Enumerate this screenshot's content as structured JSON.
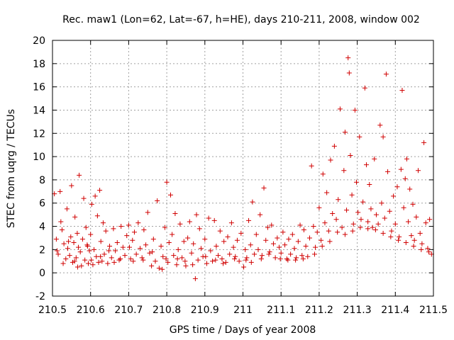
{
  "chart_data": {
    "type": "scatter",
    "title": "Rec. maw1 (Lon=62, Lat=-67, h=HE), days 210-211, 2008, window 002",
    "xlabel": "GPS time / Days of year 2008",
    "ylabel": "STEC from uqrg / TECUs",
    "xlim": [
      210.5,
      211.5
    ],
    "ylim": [
      -2,
      20
    ],
    "x_ticks": [
      "210.5",
      "210.6",
      "210.7",
      "210.8",
      "210.9",
      "211",
      "211.1",
      "211.2",
      "211.3",
      "211.4",
      "211.5"
    ],
    "y_ticks": [
      "-2",
      "0",
      "2",
      "4",
      "6",
      "8",
      "10",
      "12",
      "14",
      "16",
      "18",
      "20"
    ],
    "grid": true,
    "legend": "none",
    "marker": "plus",
    "color": "#d00000",
    "series": [
      {
        "points": [
          [
            210.505,
            6.8
          ],
          [
            210.51,
            2.9
          ],
          [
            210.515,
            1.6
          ],
          [
            210.52,
            7.0
          ],
          [
            210.522,
            4.4
          ],
          [
            210.525,
            3.7
          ],
          [
            210.53,
            2.5
          ],
          [
            210.535,
            1.2
          ],
          [
            210.538,
            5.5
          ],
          [
            210.54,
            2.1
          ],
          [
            210.545,
            1.5
          ],
          [
            210.548,
            3.1
          ],
          [
            210.55,
            7.5
          ],
          [
            210.553,
            0.9
          ],
          [
            210.556,
            2.6
          ],
          [
            210.559,
            4.8
          ],
          [
            210.562,
            1.3
          ],
          [
            210.565,
            3.4
          ],
          [
            210.568,
            2.2
          ],
          [
            210.57,
            8.4
          ],
          [
            210.573,
            1.8
          ],
          [
            210.576,
            0.6
          ],
          [
            210.579,
            2.9
          ],
          [
            210.582,
            6.4
          ],
          [
            210.585,
            1.1
          ],
          [
            210.588,
            3.9
          ],
          [
            210.591,
            2.4
          ],
          [
            210.594,
            0.8
          ],
          [
            210.597,
            1.9
          ],
          [
            210.6,
            3.3
          ],
          [
            210.603,
            5.9
          ],
          [
            210.606,
            0.7
          ],
          [
            210.609,
            2.0
          ],
          [
            210.612,
            6.6
          ],
          [
            210.615,
            1.4
          ],
          [
            210.618,
            4.9
          ],
          [
            210.621,
            0.9
          ],
          [
            210.624,
            7.1
          ],
          [
            210.627,
            2.7
          ],
          [
            210.63,
            1.0
          ],
          [
            210.633,
            4.3
          ],
          [
            210.636,
            1.6
          ],
          [
            210.64,
            3.6
          ],
          [
            210.645,
            0.8
          ],
          [
            210.65,
            2.3
          ],
          [
            210.655,
            1.3
          ],
          [
            210.66,
            3.8
          ],
          [
            210.665,
            1.9
          ],
          [
            210.67,
            2.6
          ],
          [
            210.675,
            1.1
          ],
          [
            210.68,
            4.0
          ],
          [
            210.685,
            2.2
          ],
          [
            210.69,
            1.5
          ],
          [
            210.695,
            3.2
          ],
          [
            210.7,
            4.1
          ],
          [
            210.705,
            1.2
          ],
          [
            210.71,
            2.8
          ],
          [
            210.715,
            3.5
          ],
          [
            210.72,
            1.6
          ],
          [
            210.725,
            4.3
          ],
          [
            210.73,
            2.1
          ],
          [
            210.735,
            1.3
          ],
          [
            210.74,
            3.7
          ],
          [
            210.745,
            2.4
          ],
          [
            210.75,
            5.2
          ],
          [
            210.755,
            1.7
          ],
          [
            210.76,
            0.6
          ],
          [
            210.765,
            2.9
          ],
          [
            210.77,
            1.0
          ],
          [
            210.775,
            6.2
          ],
          [
            210.78,
            0.4
          ],
          [
            210.785,
            2.3
          ],
          [
            210.79,
            1.4
          ],
          [
            210.795,
            3.9
          ],
          [
            210.8,
            7.8
          ],
          [
            210.803,
            0.9
          ],
          [
            210.806,
            2.6
          ],
          [
            210.81,
            6.7
          ],
          [
            210.814,
            3.3
          ],
          [
            210.818,
            1.5
          ],
          [
            210.822,
            5.1
          ],
          [
            210.826,
            0.7
          ],
          [
            210.83,
            2.0
          ],
          [
            210.835,
            4.2
          ],
          [
            210.84,
            1.3
          ],
          [
            210.845,
            2.7
          ],
          [
            210.85,
            0.6
          ],
          [
            210.855,
            3.0
          ],
          [
            210.86,
            4.4
          ],
          [
            210.865,
            1.7
          ],
          [
            210.87,
            2.5
          ],
          [
            210.875,
            -0.5
          ],
          [
            210.878,
            5.0
          ],
          [
            210.882,
            1.1
          ],
          [
            210.886,
            3.8
          ],
          [
            210.89,
            2.1
          ],
          [
            210.895,
            1.4
          ],
          [
            210.9,
            2.9
          ],
          [
            210.905,
            0.8
          ],
          [
            210.91,
            4.7
          ],
          [
            210.915,
            1.9
          ],
          [
            210.92,
            1.0
          ],
          [
            210.925,
            4.5
          ],
          [
            210.93,
            2.3
          ],
          [
            210.935,
            1.5
          ],
          [
            210.94,
            3.6
          ],
          [
            210.945,
            1.2
          ],
          [
            210.95,
            2.7
          ],
          [
            210.955,
            0.9
          ],
          [
            210.96,
            3.1
          ],
          [
            210.965,
            1.6
          ],
          [
            210.97,
            4.3
          ],
          [
            210.975,
            2.2
          ],
          [
            210.98,
            1.4
          ],
          [
            210.985,
            2.8
          ],
          [
            210.99,
            1.0
          ],
          [
            210.995,
            3.4
          ],
          [
            211.002,
            0.5
          ],
          [
            211.006,
            2.0
          ],
          [
            211.01,
            1.3
          ],
          [
            211.015,
            4.5
          ],
          [
            211.02,
            2.4
          ],
          [
            211.025,
            6.1
          ],
          [
            211.03,
            1.6
          ],
          [
            211.035,
            3.3
          ],
          [
            211.04,
            2.0
          ],
          [
            211.045,
            5.0
          ],
          [
            211.05,
            1.5
          ],
          [
            211.055,
            7.3
          ],
          [
            211.06,
            2.8
          ],
          [
            211.065,
            3.9
          ],
          [
            211.07,
            1.8
          ],
          [
            211.075,
            4.1
          ],
          [
            211.08,
            2.5
          ],
          [
            211.085,
            1.3
          ],
          [
            211.09,
            3.0
          ],
          [
            211.095,
            2.2
          ],
          [
            211.1,
            1.7
          ],
          [
            211.105,
            3.5
          ],
          [
            211.11,
            2.4
          ],
          [
            211.115,
            1.2
          ],
          [
            211.12,
            2.9
          ],
          [
            211.125,
            1.6
          ],
          [
            211.13,
            3.3
          ],
          [
            211.135,
            2.1
          ],
          [
            211.14,
            1.3
          ],
          [
            211.145,
            2.7
          ],
          [
            211.15,
            4.1
          ],
          [
            211.155,
            1.5
          ],
          [
            211.16,
            3.7
          ],
          [
            211.165,
            2.3
          ],
          [
            211.17,
            1.4
          ],
          [
            211.175,
            3.0
          ],
          [
            211.18,
            9.2
          ],
          [
            211.185,
            4.0
          ],
          [
            211.19,
            2.2
          ],
          [
            211.195,
            3.5
          ],
          [
            211.2,
            5.6
          ],
          [
            211.205,
            2.8
          ],
          [
            211.21,
            8.5
          ],
          [
            211.215,
            4.3
          ],
          [
            211.22,
            6.9
          ],
          [
            211.225,
            3.6
          ],
          [
            211.23,
            9.7
          ],
          [
            211.235,
            5.1
          ],
          [
            211.24,
            10.9
          ],
          [
            211.245,
            4.6
          ],
          [
            211.25,
            6.3
          ],
          [
            211.255,
            14.1
          ],
          [
            211.26,
            3.9
          ],
          [
            211.265,
            8.8
          ],
          [
            211.268,
            12.1
          ],
          [
            211.272,
            5.4
          ],
          [
            211.276,
            18.5
          ],
          [
            211.279,
            17.2
          ],
          [
            211.282,
            10.1
          ],
          [
            211.286,
            6.7
          ],
          [
            211.29,
            4.2
          ],
          [
            211.294,
            14.0
          ],
          [
            211.298,
            7.8
          ],
          [
            211.302,
            5.2
          ],
          [
            211.306,
            11.7
          ],
          [
            211.31,
            4.6
          ],
          [
            211.315,
            6.1
          ],
          [
            211.32,
            15.9
          ],
          [
            211.324,
            9.3
          ],
          [
            211.328,
            4.4
          ],
          [
            211.332,
            7.6
          ],
          [
            211.336,
            5.5
          ],
          [
            211.34,
            3.9
          ],
          [
            211.345,
            9.8
          ],
          [
            211.35,
            5.0
          ],
          [
            211.355,
            4.2
          ],
          [
            211.36,
            12.7
          ],
          [
            211.364,
            6.0
          ],
          [
            211.368,
            11.7
          ],
          [
            211.372,
            4.7
          ],
          [
            211.376,
            17.1
          ],
          [
            211.38,
            8.7
          ],
          [
            211.385,
            5.3
          ],
          [
            211.39,
            3.6
          ],
          [
            211.395,
            6.6
          ],
          [
            211.4,
            4.2
          ],
          [
            211.405,
            7.4
          ],
          [
            211.41,
            3.1
          ],
          [
            211.415,
            8.9
          ],
          [
            211.418,
            15.7
          ],
          [
            211.422,
            5.6
          ],
          [
            211.426,
            8.1
          ],
          [
            211.43,
            9.8
          ],
          [
            211.434,
            4.4
          ],
          [
            211.438,
            7.2
          ],
          [
            211.442,
            3.2
          ],
          [
            211.446,
            5.9
          ],
          [
            211.45,
            2.8
          ],
          [
            211.455,
            4.8
          ],
          [
            211.46,
            8.8
          ],
          [
            211.465,
            3.4
          ],
          [
            211.47,
            2.5
          ],
          [
            211.475,
            11.2
          ],
          [
            211.48,
            4.3
          ],
          [
            211.485,
            2.1
          ],
          [
            211.49,
            4.6
          ],
          [
            211.495,
            1.6
          ],
          [
            210.512,
            1.9
          ],
          [
            210.528,
            0.8
          ],
          [
            210.542,
            2.7
          ],
          [
            210.558,
            1.0
          ],
          [
            210.566,
            0.5
          ],
          [
            210.592,
            2.3
          ],
          [
            210.602,
            1.1
          ],
          [
            210.626,
            1.4
          ],
          [
            210.648,
            1.9
          ],
          [
            210.662,
            0.9
          ],
          [
            210.678,
            1.2
          ],
          [
            210.702,
            2.2
          ],
          [
            210.712,
            1.0
          ],
          [
            210.738,
            1.1
          ],
          [
            210.762,
            1.8
          ],
          [
            210.788,
            0.3
          ],
          [
            210.798,
            1.2
          ],
          [
            210.828,
            1.2
          ],
          [
            210.848,
            1.0
          ],
          [
            210.868,
            0.7
          ],
          [
            210.902,
            1.4
          ],
          [
            210.928,
            1.1
          ],
          [
            210.948,
            0.8
          ],
          [
            210.978,
            1.2
          ],
          [
            211.008,
            1.1
          ],
          [
            211.022,
            0.9
          ],
          [
            211.048,
            1.2
          ],
          [
            211.068,
            1.6
          ],
          [
            211.098,
            1.2
          ],
          [
            211.118,
            1.1
          ],
          [
            211.138,
            1.1
          ],
          [
            211.158,
            1.2
          ],
          [
            211.188,
            1.6
          ],
          [
            211.208,
            2.3
          ],
          [
            211.228,
            2.7
          ],
          [
            211.248,
            3.5
          ],
          [
            211.268,
            3.3
          ],
          [
            211.288,
            3.6
          ],
          [
            211.308,
            3.9
          ],
          [
            211.328,
            3.8
          ],
          [
            211.348,
            3.7
          ],
          [
            211.368,
            3.4
          ],
          [
            211.388,
            3.1
          ],
          [
            211.408,
            2.8
          ],
          [
            211.428,
            2.6
          ],
          [
            211.448,
            2.3
          ],
          [
            211.468,
            2.0
          ],
          [
            211.488,
            1.8
          ]
        ]
      }
    ]
  }
}
